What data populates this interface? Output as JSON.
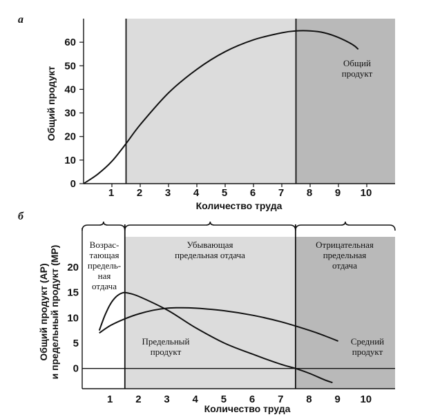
{
  "chart_data": [
    {
      "type": "line",
      "panel_label": "а",
      "xlabel": "Количество труда",
      "ylabel": "Общий продукт",
      "xlim": [
        0,
        11
      ],
      "ylim": [
        0,
        70
      ],
      "x_ticks": [
        1,
        2,
        3,
        4,
        5,
        6,
        7,
        8,
        9,
        10
      ],
      "y_ticks": [
        0,
        10,
        20,
        30,
        40,
        50,
        60
      ],
      "regions": [
        {
          "from": 0,
          "to": 1.5,
          "fill": "#ffffff"
        },
        {
          "from": 1.5,
          "to": 7.5,
          "fill": "#dcdcdc"
        },
        {
          "from": 7.5,
          "to": 11,
          "fill": "#b9b9b9"
        }
      ],
      "dividers": [
        1.5,
        7.5
      ],
      "series": [
        {
          "name": "Общий продукт",
          "label_lines": [
            "Общий",
            "продукт"
          ],
          "x": [
            0,
            0.5,
            1.0,
            1.5,
            2.0,
            3.0,
            4.0,
            5.0,
            6.0,
            7.0,
            7.5,
            8.0,
            8.5,
            9.0,
            9.5,
            9.7
          ],
          "y": [
            0,
            4,
            9.5,
            17,
            25,
            38.5,
            48.5,
            56,
            61,
            64,
            64.8,
            64.8,
            64,
            62,
            59,
            57
          ]
        }
      ]
    },
    {
      "type": "line",
      "panel_label": "б",
      "xlabel": "Количество труда",
      "ylabel_lines": [
        "Общий продукт (AP)",
        "и предельный продукт (MP)"
      ],
      "xlim": [
        0,
        11
      ],
      "ylim": [
        -4,
        26
      ],
      "x_ticks": [
        1,
        2,
        3,
        4,
        5,
        6,
        7,
        8,
        9,
        10
      ],
      "y_ticks": [
        0,
        5,
        10,
        15,
        20
      ],
      "regions": [
        {
          "from": 0,
          "to": 1.5,
          "fill": "#ffffff"
        },
        {
          "from": 1.5,
          "to": 7.5,
          "fill": "#dcdcdc"
        },
        {
          "from": 7.5,
          "to": 11,
          "fill": "#b9b9b9"
        }
      ],
      "dividers": [
        1.5,
        7.5
      ],
      "region_labels": [
        {
          "lines": [
            "Возрас-",
            "тающая",
            "предель-",
            "ная",
            "отдача"
          ]
        },
        {
          "lines": [
            "Убывающая",
            "предельная отдача"
          ]
        },
        {
          "lines": [
            "Отрицательная",
            "предельная",
            "отдача"
          ]
        }
      ],
      "series": [
        {
          "name": "Предельный продукт",
          "label_lines": [
            "Предельный",
            "продукт"
          ],
          "x": [
            0.6,
            0.8,
            1.0,
            1.2,
            1.4,
            1.6,
            2.0,
            3.0,
            4.0,
            5.0,
            6.0,
            7.0,
            7.5,
            8.0,
            8.5,
            8.8
          ],
          "y": [
            7.5,
            10.5,
            12.8,
            14.2,
            14.9,
            14.9,
            14.2,
            11.5,
            8.0,
            5.0,
            2.8,
            0.8,
            0,
            -1,
            -2.2,
            -2.8
          ]
        },
        {
          "name": "Средний продукт",
          "label_lines": [
            "Средний",
            "продукт"
          ],
          "x": [
            0.6,
            1.0,
            1.5,
            2.0,
            2.5,
            3.0,
            3.5,
            4.0,
            5.0,
            6.0,
            7.0,
            8.0,
            8.5,
            9.0
          ],
          "y": [
            7,
            8.5,
            9.8,
            10.8,
            11.5,
            11.9,
            12.0,
            11.9,
            11.4,
            10.5,
            9.2,
            7.5,
            6.5,
            5.4
          ]
        }
      ]
    }
  ]
}
